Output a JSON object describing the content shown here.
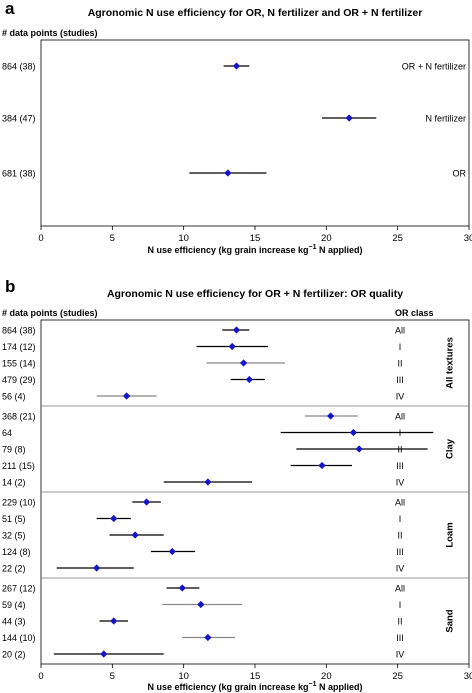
{
  "chart_data": [
    {
      "panel": "a",
      "type": "scatter",
      "title": "Agronomic N use efficiency for OR, N fertilizer and OR + N fertilizer",
      "points_header": "# data points (studies)",
      "xlabel": "N use efficiency (kg grain increase kg⁻¹ N applied)",
      "xlim": [
        0,
        30
      ],
      "xticks": [
        "0",
        "5",
        "10",
        "15",
        "20",
        "25",
        "30"
      ],
      "grid": false,
      "series": [
        {
          "points": "864 (38)",
          "label": "OR + N fertilizer",
          "mean": 13.7,
          "ci": [
            12.8,
            14.6
          ],
          "whisker_color": "#000000"
        },
        {
          "points": "384 (47)",
          "label": "N fertilizer",
          "mean": 21.6,
          "ci": [
            19.7,
            23.5
          ],
          "whisker_color": "#000000"
        },
        {
          "points": "681 (38)",
          "label": "OR",
          "mean": 13.1,
          "ci": [
            10.4,
            15.8
          ],
          "whisker_color": "#000000"
        }
      ]
    },
    {
      "panel": "b",
      "type": "scatter",
      "title": "Agronomic N use efficiency for OR + N fertilizer: OR quality",
      "points_header": "# data points (studies)",
      "class_header": "OR class",
      "xlabel": "N use efficiency (kg grain increase kg⁻¹ N applied)",
      "xlim": [
        0,
        30
      ],
      "xticks": [
        "0",
        "5",
        "10",
        "15",
        "20",
        "25",
        "30"
      ],
      "grid": false,
      "groups": [
        {
          "name": "All textures",
          "rows": [
            {
              "points": "864 (38)",
              "cls": "All",
              "mean": 13.7,
              "ci": [
                12.7,
                14.6
              ],
              "whisker_color": "#000000"
            },
            {
              "points": "174 (12)",
              "cls": "I",
              "mean": 13.4,
              "ci": [
                10.9,
                15.9
              ],
              "whisker_color": "#000000"
            },
            {
              "points": "155 (14)",
              "cls": "II",
              "mean": 14.2,
              "ci": [
                11.6,
                17.1
              ],
              "whisker_color": "#888888"
            },
            {
              "points": "479 (29)",
              "cls": "III",
              "mean": 14.6,
              "ci": [
                13.3,
                15.7
              ],
              "whisker_color": "#000000"
            },
            {
              "points": "56 (4)",
              "cls": "IV",
              "mean": 6.0,
              "ci": [
                3.9,
                8.1
              ],
              "whisker_color": "#888888"
            }
          ]
        },
        {
          "name": "Clay",
          "rows": [
            {
              "points": "368 (21)",
              "cls": "All",
              "mean": 20.3,
              "ci": [
                18.5,
                22.2
              ],
              "whisker_color": "#888888"
            },
            {
              "points": "64",
              "cls": "I",
              "mean": 21.9,
              "ci": [
                16.8,
                27.5
              ],
              "whisker_color": "#000000"
            },
            {
              "points": "79 (8)",
              "cls": "II",
              "mean": 22.3,
              "ci": [
                17.9,
                27.1
              ],
              "whisker_color": "#000000"
            },
            {
              "points": "211 (15)",
              "cls": "III",
              "mean": 19.7,
              "ci": [
                17.5,
                21.8
              ],
              "whisker_color": "#000000"
            },
            {
              "points": "14 (2)",
              "cls": "IV",
              "mean": 11.7,
              "ci": [
                8.6,
                14.8
              ],
              "whisker_color": "#000000"
            }
          ]
        },
        {
          "name": "Loam",
          "rows": [
            {
              "points": "229 (10)",
              "cls": "All",
              "mean": 7.4,
              "ci": [
                6.4,
                8.4
              ],
              "whisker_color": "#000000"
            },
            {
              "points": "51 (5)",
              "cls": "I",
              "mean": 5.1,
              "ci": [
                3.9,
                6.3
              ],
              "whisker_color": "#000000"
            },
            {
              "points": "32 (5)",
              "cls": "II",
              "mean": 6.6,
              "ci": [
                4.8,
                8.6
              ],
              "whisker_color": "#000000"
            },
            {
              "points": "124 (8)",
              "cls": "III",
              "mean": 9.2,
              "ci": [
                7.7,
                10.8
              ],
              "whisker_color": "#000000"
            },
            {
              "points": "22 (2)",
              "cls": "IV",
              "mean": 3.9,
              "ci": [
                1.1,
                6.5
              ],
              "whisker_color": "#000000"
            }
          ]
        },
        {
          "name": "Sand",
          "rows": [
            {
              "points": "267 (12)",
              "cls": "All",
              "mean": 9.9,
              "ci": [
                8.8,
                11.1
              ],
              "whisker_color": "#000000"
            },
            {
              "points": "59 (4)",
              "cls": "I",
              "mean": 11.2,
              "ci": [
                8.5,
                14.1
              ],
              "whisker_color": "#888888"
            },
            {
              "points": "44 (3)",
              "cls": "II",
              "mean": 5.1,
              "ci": [
                4.1,
                6.1
              ],
              "whisker_color": "#000000"
            },
            {
              "points": "144 (10)",
              "cls": "III",
              "mean": 11.7,
              "ci": [
                9.9,
                13.6
              ],
              "whisker_color": "#888888"
            },
            {
              "points": "20 (2)",
              "cls": "IV",
              "mean": 4.4,
              "ci": [
                0.9,
                8.6
              ],
              "whisker_color": "#000000"
            }
          ]
        }
      ]
    }
  ],
  "marker_color": "#1414c8"
}
